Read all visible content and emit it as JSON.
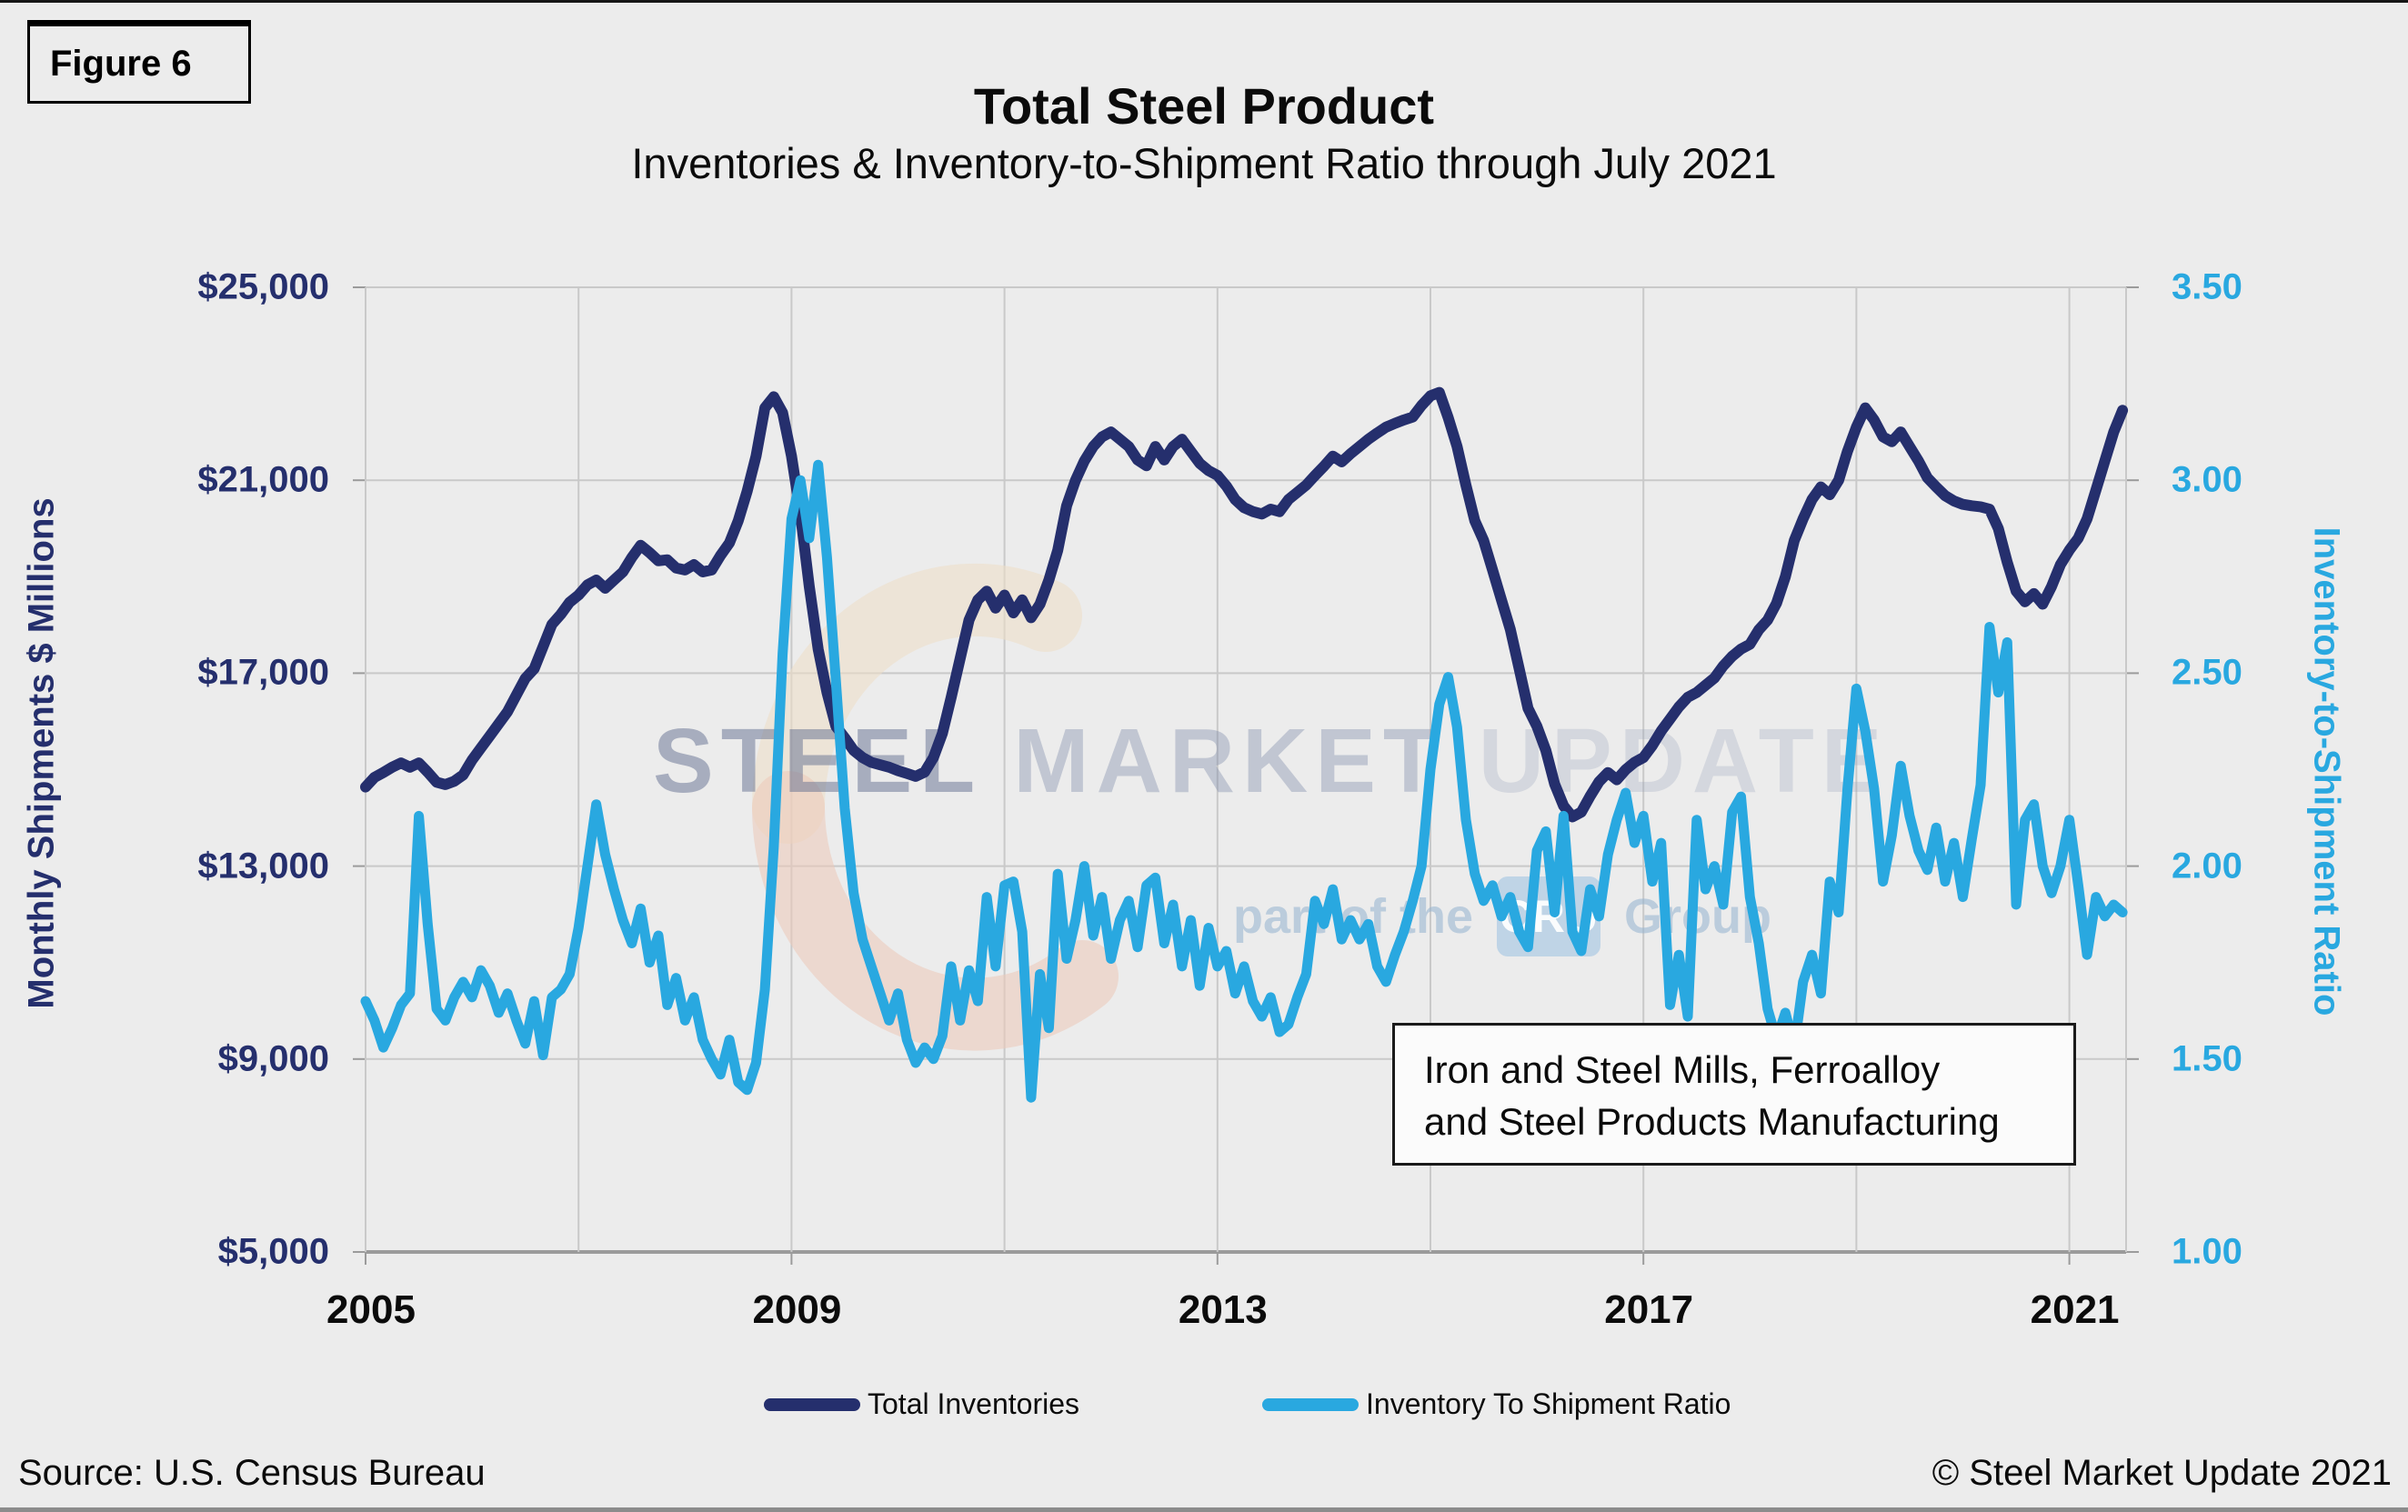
{
  "meta": {
    "figure_label": "Figure 6",
    "source": "Source: U.S. Census Bureau",
    "copyright": "© Steel Market Update 2021"
  },
  "watermark": {
    "part1": "STEEL",
    "part2": "MARKET",
    "part3": "UPDATE",
    "tagline_prefix": "part of the",
    "badge": "CRU",
    "tagline_suffix": "Group",
    "arc_top_color": "#EFDEC6",
    "arc_bottom_color": "#EDC9B8"
  },
  "annotation": {
    "line1": "Iron and Steel Mills, Ferroalloy",
    "line2": "and Steel Products Manufacturing"
  },
  "legend": [
    {
      "label": "Total Inventories",
      "color": "#252F6D"
    },
    {
      "label": "Inventory To Shipment Ratio",
      "color": "#29A8E0"
    }
  ],
  "chart_data": {
    "type": "line",
    "title": "Total Steel Product",
    "subtitle": "Inventories & Inventory-to-Shipment Ratio through July 2021",
    "background": "#ECECEC",
    "grid_color": "#C9C9C9",
    "axis_line_color": "#9B9B9B",
    "x_axis": {
      "tick_years": [
        2005,
        2009,
        2013,
        2017,
        2021
      ],
      "gridline_years": [
        2007,
        2009,
        2011,
        2013,
        2015,
        2017,
        2019,
        2021
      ],
      "range": [
        2005.0,
        2021.58
      ]
    },
    "y_left": {
      "label": "Monthly Shipments $ Millions",
      "ticks": [
        "$25,000",
        "$21,000",
        "$17,000",
        "$13,000",
        "$9,000",
        "$5,000"
      ],
      "range": [
        5000,
        25000
      ],
      "color": "#252F6D"
    },
    "y_right": {
      "label": "Inventory-to-Shipment Ratio",
      "ticks": [
        "3.50",
        "3.00",
        "2.50",
        "2.00",
        "1.50",
        "1.00"
      ],
      "range": [
        1.0,
        3.5
      ],
      "color": "#29A8E0"
    },
    "series": [
      {
        "name": "Total Inventories",
        "axis": "left",
        "color": "#252F6D",
        "start_year": 2005,
        "monthly_values": [
          14640,
          14840,
          14940,
          15050,
          15140,
          15050,
          15140,
          14950,
          14740,
          14690,
          14760,
          14890,
          15200,
          15450,
          15700,
          15950,
          16200,
          16550,
          16890,
          17090,
          17550,
          18010,
          18220,
          18470,
          18620,
          18830,
          18930,
          18760,
          18930,
          19100,
          19400,
          19650,
          19500,
          19330,
          19350,
          19180,
          19140,
          19250,
          19100,
          19140,
          19440,
          19700,
          20160,
          20770,
          21500,
          22500,
          22730,
          22400,
          21500,
          20300,
          18800,
          17500,
          16600,
          15900,
          15660,
          15400,
          15250,
          15150,
          15100,
          15050,
          14980,
          14920,
          14860,
          14950,
          15250,
          15750,
          16500,
          17300,
          18100,
          18520,
          18700,
          18350,
          18620,
          18250,
          18520,
          18150,
          18430,
          18930,
          19550,
          20470,
          21000,
          21400,
          21700,
          21900,
          22000,
          21850,
          21700,
          21420,
          21300,
          21700,
          21420,
          21700,
          21850,
          21600,
          21350,
          21200,
          21100,
          20880,
          20600,
          20430,
          20350,
          20300,
          20400,
          20350,
          20600,
          20750,
          20900,
          21100,
          21290,
          21500,
          21380,
          21550,
          21700,
          21850,
          21980,
          22100,
          22180,
          22250,
          22310,
          22550,
          22750,
          22820,
          22300,
          21700,
          20900,
          20160,
          19750,
          19140,
          18520,
          17910,
          17090,
          16270,
          15900,
          15400,
          14700,
          14250,
          14020,
          14120,
          14450,
          14750,
          14940,
          14790,
          15000,
          15150,
          15250,
          15500,
          15800,
          16050,
          16300,
          16500,
          16600,
          16750,
          16900,
          17150,
          17350,
          17500,
          17600,
          17900,
          18100,
          18450,
          19000,
          19750,
          20200,
          20600,
          20860,
          20700,
          21000,
          21600,
          22100,
          22500,
          22250,
          21900,
          21800,
          22000,
          21700,
          21400,
          21050,
          20860,
          20680,
          20570,
          20500,
          20470,
          20450,
          20400,
          20000,
          19300,
          18700,
          18480,
          18650,
          18430,
          18800,
          19250,
          19550,
          19800,
          20200,
          20800,
          21400,
          22000,
          22450
        ]
      },
      {
        "name": "Inventory To Shipment Ratio",
        "axis": "right",
        "color": "#29A8E0",
        "start_year": 2005,
        "monthly_values": [
          1.65,
          1.6,
          1.53,
          1.58,
          1.64,
          1.67,
          2.13,
          1.85,
          1.63,
          1.6,
          1.66,
          1.7,
          1.66,
          1.73,
          1.69,
          1.62,
          1.67,
          1.6,
          1.54,
          1.65,
          1.51,
          1.66,
          1.68,
          1.72,
          1.84,
          2.0,
          2.16,
          2.03,
          1.94,
          1.86,
          1.8,
          1.89,
          1.75,
          1.82,
          1.64,
          1.71,
          1.6,
          1.66,
          1.55,
          1.5,
          1.46,
          1.55,
          1.44,
          1.42,
          1.49,
          1.68,
          2.05,
          2.55,
          2.9,
          3.0,
          2.85,
          3.04,
          2.8,
          2.48,
          2.15,
          1.93,
          1.81,
          1.74,
          1.67,
          1.6,
          1.67,
          1.55,
          1.49,
          1.53,
          1.5,
          1.56,
          1.74,
          1.6,
          1.73,
          1.65,
          1.92,
          1.74,
          1.95,
          1.96,
          1.83,
          1.4,
          1.72,
          1.58,
          1.98,
          1.76,
          1.86,
          2.0,
          1.82,
          1.92,
          1.76,
          1.86,
          1.91,
          1.79,
          1.95,
          1.97,
          1.8,
          1.9,
          1.74,
          1.86,
          1.69,
          1.84,
          1.74,
          1.78,
          1.67,
          1.74,
          1.65,
          1.61,
          1.66,
          1.57,
          1.59,
          1.66,
          1.72,
          1.91,
          1.85,
          1.94,
          1.81,
          1.86,
          1.81,
          1.85,
          1.74,
          1.7,
          1.77,
          1.83,
          1.91,
          2.0,
          2.25,
          2.42,
          2.49,
          2.36,
          2.12,
          1.98,
          1.91,
          1.95,
          1.87,
          1.92,
          1.83,
          1.79,
          2.04,
          2.09,
          1.88,
          2.13,
          1.83,
          1.78,
          1.94,
          1.87,
          2.03,
          2.12,
          2.19,
          2.06,
          2.13,
          1.96,
          2.06,
          1.64,
          1.77,
          1.61,
          2.12,
          1.94,
          2.0,
          1.9,
          2.14,
          2.18,
          1.92,
          1.8,
          1.63,
          1.55,
          1.62,
          1.53,
          1.7,
          1.77,
          1.67,
          1.96,
          1.88,
          2.2,
          2.46,
          2.35,
          2.2,
          1.96,
          2.08,
          2.26,
          2.13,
          2.04,
          1.99,
          2.1,
          1.96,
          2.06,
          1.92,
          2.07,
          2.21,
          2.62,
          2.45,
          2.58,
          1.9,
          2.12,
          2.16,
          2.0,
          1.93,
          2.0,
          2.12,
          1.95,
          1.77,
          1.92,
          1.87,
          1.9,
          1.88
        ]
      }
    ]
  }
}
